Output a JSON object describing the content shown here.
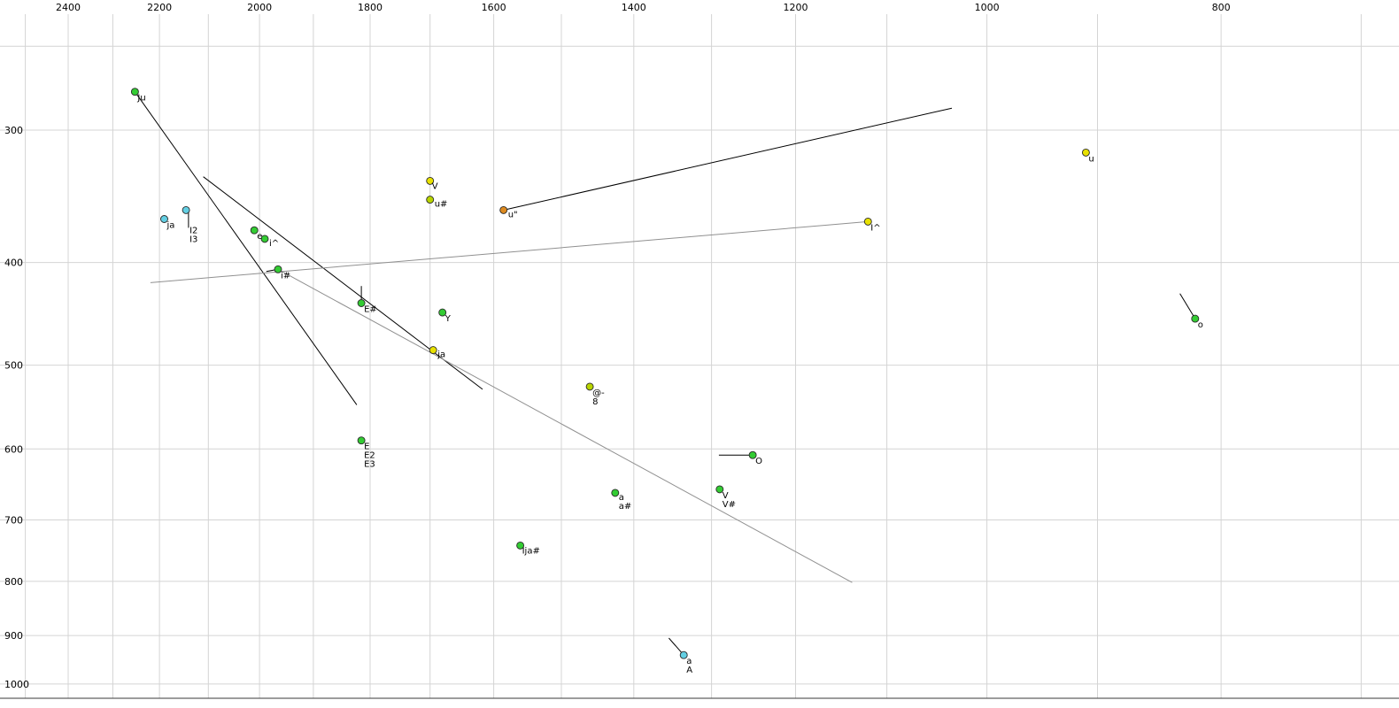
{
  "palette": {
    "green": "#33cc33",
    "yellow": "#e8e100",
    "yellowgreen": "#b8d400",
    "orange": "#dd8a1f",
    "cyan": "#63cfe3",
    "grid": "#d4d4d4",
    "frame": "#3a3a3a",
    "black": "#000000",
    "gray_line": "#909090",
    "gray_label": "#8c8c8c",
    "dot_stroke": "#2a2a2a"
  },
  "chart_data": {
    "type": "scatter",
    "title": "",
    "description": "Vowel formant chart: F2 (Hz) on reversed log x-axis, F1 (Hz) on downward log y-axis",
    "x_axis": {
      "scale": "log",
      "reversed": true,
      "ticks": [
        2400,
        2200,
        2000,
        1800,
        1600,
        1400,
        1200,
        1000,
        800
      ],
      "grid": {
        "max": 2500,
        "min": 700,
        "step": 100
      }
    },
    "y_axis": {
      "scale": "log",
      "downward": true,
      "ticks": [
        300,
        400,
        500,
        600,
        700,
        800,
        900,
        1000
      ],
      "grid": {
        "values": [
          250,
          300,
          400,
          500,
          600,
          700,
          800,
          900,
          1000
        ]
      }
    },
    "points": [
      {
        "name": "ju",
        "f2": 2252,
        "f1": 276,
        "color": "green",
        "labels": [
          {
            "text": "Ju"
          }
        ]
      },
      {
        "name": "u",
        "f2": 910,
        "f1": 315,
        "color": "yellow",
        "labels": [
          {
            "text": "u"
          }
        ]
      },
      {
        "name": "v",
        "f2": 1700,
        "f1": 335,
        "color": "yellow",
        "labels": [
          {
            "text": "V"
          }
        ],
        "label_offset": [
          2,
          9
        ]
      },
      {
        "name": "u-hash",
        "f2": 1700,
        "f1": 349,
        "color": "yellowgreen",
        "labels": [
          {
            "text": "u#"
          }
        ],
        "label_offset": [
          5,
          8
        ]
      },
      {
        "name": "u-umlaut",
        "f2": 1585,
        "f1": 357,
        "color": "orange",
        "labels": [
          {
            "text": "u\""
          }
        ],
        "label_offset": [
          5,
          8
        ]
      },
      {
        "name": "ja-left",
        "f2": 2190,
        "f1": 364,
        "color": "cyan",
        "labels": [
          {
            "text": "ja"
          }
        ]
      },
      {
        "name": "i2-i3",
        "f2": 2145,
        "f1": 357,
        "color": "cyan",
        "labels": [
          {
            "text": "I2"
          },
          {
            "text": "I3"
          }
        ],
        "label_offset": [
          4,
          26
        ]
      },
      {
        "name": "e",
        "f2": 2010,
        "f1": 373,
        "color": "green",
        "labels": [
          {
            "text": "e"
          }
        ]
      },
      {
        "name": "i-caret",
        "f2": 1990,
        "f1": 380,
        "color": "green",
        "labels": [
          {
            "text": "i^"
          }
        ],
        "label_offset": [
          5,
          8
        ]
      },
      {
        "name": "i-hash",
        "f2": 1965,
        "f1": 406,
        "color": "green",
        "labels": [
          {
            "text": "i#"
          }
        ]
      },
      {
        "name": "e-hash",
        "f2": 1815,
        "f1": 437,
        "color": "green",
        "labels": [
          {
            "text": "E#"
          }
        ]
      },
      {
        "name": "y",
        "f2": 1680,
        "f1": 446,
        "color": "green",
        "labels": [
          {
            "text": "Y"
          }
        ]
      },
      {
        "name": "ja-mid",
        "f2": 1695,
        "f1": 484,
        "color": "yellow",
        "labels": [
          {
            "text": "ja",
            "muted": true
          }
        ],
        "label_offset": [
          5,
          8
        ]
      },
      {
        "name": "at-dash",
        "f2": 1460,
        "f1": 524,
        "color": "yellowgreen",
        "labels": [
          {
            "text": "@-"
          },
          {
            "text": "8"
          }
        ]
      },
      {
        "name": "e-e2-e3",
        "f2": 1815,
        "f1": 589,
        "color": "green",
        "labels": [
          {
            "text": "E"
          },
          {
            "text": "E2"
          },
          {
            "text": "E3"
          }
        ]
      },
      {
        "name": "o-cap",
        "f2": 1250,
        "f1": 608,
        "color": "green",
        "labels": [
          {
            "text": "O"
          }
        ]
      },
      {
        "name": "a-hash",
        "f2": 1425,
        "f1": 660,
        "color": "green",
        "labels": [
          {
            "text": "a",
            "muted": true
          },
          {
            "text": "a#"
          }
        ],
        "label_offset": [
          4,
          8
        ]
      },
      {
        "name": "v-hash",
        "f2": 1290,
        "f1": 655,
        "color": "green",
        "labels": [
          {
            "text": "V"
          },
          {
            "text": "V#"
          }
        ]
      },
      {
        "name": "ija-hash",
        "f2": 1560,
        "f1": 740,
        "color": "green",
        "labels": [
          {
            "text": "Ija#"
          }
        ],
        "label_offset": [
          2,
          9
        ]
      },
      {
        "name": "o",
        "f2": 820,
        "f1": 452,
        "color": "green",
        "labels": [
          {
            "text": "o"
          }
        ]
      },
      {
        "name": "i-caret-cap",
        "f2": 1120,
        "f1": 366,
        "color": "yellow",
        "labels": [
          {
            "text": "I^",
            "muted": true
          }
        ]
      },
      {
        "name": "a-cap",
        "f2": 1335,
        "f1": 939,
        "color": "cyan",
        "labels": [
          {
            "text": "a"
          },
          {
            "text": "A"
          }
        ]
      }
    ],
    "segments": [
      {
        "from": [
          2252,
          276
        ],
        "to": [
          1823,
          545
        ],
        "color": "black"
      },
      {
        "from": [
          2110,
          332
        ],
        "to": [
          1617,
          527
        ],
        "color": "black"
      },
      {
        "from": [
          1965,
          406
        ],
        "to": [
          1137,
          802
        ],
        "color": "gray"
      },
      {
        "from": [
          2219,
          418
        ],
        "to": [
          1120,
          366
        ],
        "color": "gray"
      },
      {
        "from": [
          1585,
          357
        ],
        "to": [
          1034,
          286
        ],
        "color": "black"
      },
      {
        "from": [
          2140,
          359
        ],
        "to": [
          2140,
          371
        ],
        "color": "black"
      },
      {
        "from": [
          1987,
          408
        ],
        "to": [
          1965,
          406
        ],
        "color": "black"
      },
      {
        "from": [
          1815,
          421
        ],
        "to": [
          1815,
          437
        ],
        "color": "black"
      },
      {
        "from": [
          1291,
          608
        ],
        "to": [
          1250,
          608
        ],
        "color": "black"
      },
      {
        "from": [
          832,
          428
        ],
        "to": [
          820,
          452
        ],
        "color": "black"
      },
      {
        "from": [
          1354,
          905
        ],
        "to": [
          1335,
          939
        ],
        "color": "black"
      }
    ]
  }
}
